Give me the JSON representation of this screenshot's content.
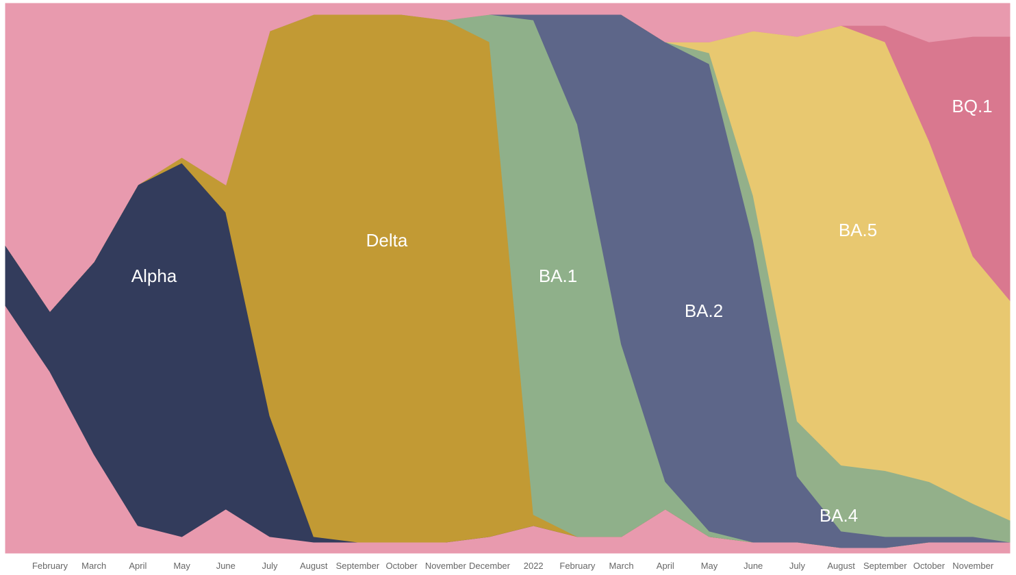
{
  "chart_data": {
    "type": "stacked-area",
    "categories": [
      null,
      "February",
      "March",
      "April",
      "May",
      "June",
      "July",
      "August",
      "September",
      "October",
      "November",
      "December",
      "2022",
      "February",
      "March",
      "April",
      "May",
      "June",
      "July",
      "August",
      "September",
      "October",
      "November",
      null
    ],
    "series": [
      {
        "color": "#e89aae",
        "values": [
          45,
          33,
          18,
          5,
          3,
          8,
          3,
          2,
          2,
          2,
          2,
          3,
          5,
          3,
          3,
          8,
          3,
          2,
          2,
          1,
          1,
          2,
          2,
          2
        ]
      },
      {
        "name": "Alpha",
        "color": "#333c5c",
        "values": [
          11,
          11,
          35,
          62,
          68,
          54,
          22,
          1,
          0,
          0,
          0,
          0,
          0,
          0,
          0,
          0,
          0,
          0,
          0,
          0,
          0,
          0,
          0,
          0
        ]
      },
      {
        "name": "Delta",
        "color": "#c29a34",
        "values": [
          0,
          0,
          0,
          0,
          1,
          5,
          70,
          95,
          96,
          96,
          95,
          90,
          2,
          0,
          0,
          0,
          0,
          0,
          0,
          0,
          0,
          0,
          0,
          0
        ]
      },
      {
        "name": "BA.1",
        "color": "#8fb08a",
        "values": [
          0,
          0,
          0,
          0,
          0,
          0,
          0,
          0,
          0,
          0,
          0,
          5,
          90,
          75,
          35,
          5,
          1,
          0,
          0,
          0,
          0,
          0,
          0,
          0
        ]
      },
      {
        "name": "BA.2",
        "color": "#5d6689",
        "values": [
          0,
          0,
          0,
          0,
          0,
          0,
          0,
          0,
          0,
          0,
          0,
          0,
          1,
          20,
          60,
          80,
          85,
          55,
          12,
          3,
          2,
          1,
          1,
          0
        ]
      },
      {
        "name": "BA.4",
        "color": "#93b08a",
        "values": [
          0,
          0,
          0,
          0,
          0,
          0,
          0,
          0,
          0,
          0,
          0,
          0,
          0,
          0,
          0,
          0,
          2,
          8,
          10,
          12,
          12,
          10,
          6,
          4
        ]
      },
      {
        "name": "BA.5",
        "color": "#e8c870",
        "values": [
          0,
          0,
          0,
          0,
          0,
          0,
          0,
          0,
          0,
          0,
          0,
          0,
          0,
          0,
          0,
          0,
          2,
          30,
          70,
          80,
          78,
          62,
          45,
          40
        ]
      },
      {
        "name": "BQ.1",
        "color": "#d9788f",
        "values": [
          0,
          0,
          0,
          0,
          0,
          0,
          0,
          0,
          0,
          0,
          0,
          0,
          0,
          0,
          0,
          0,
          0,
          0,
          0,
          0,
          3,
          18,
          40,
          48
        ]
      },
      {
        "color": "#e89aae",
        "values": [
          44,
          56,
          47,
          33,
          28,
          33,
          5,
          2,
          2,
          2,
          3,
          2,
          2,
          2,
          2,
          7,
          7,
          5,
          6,
          4,
          4,
          7,
          6,
          6
        ]
      }
    ]
  }
}
